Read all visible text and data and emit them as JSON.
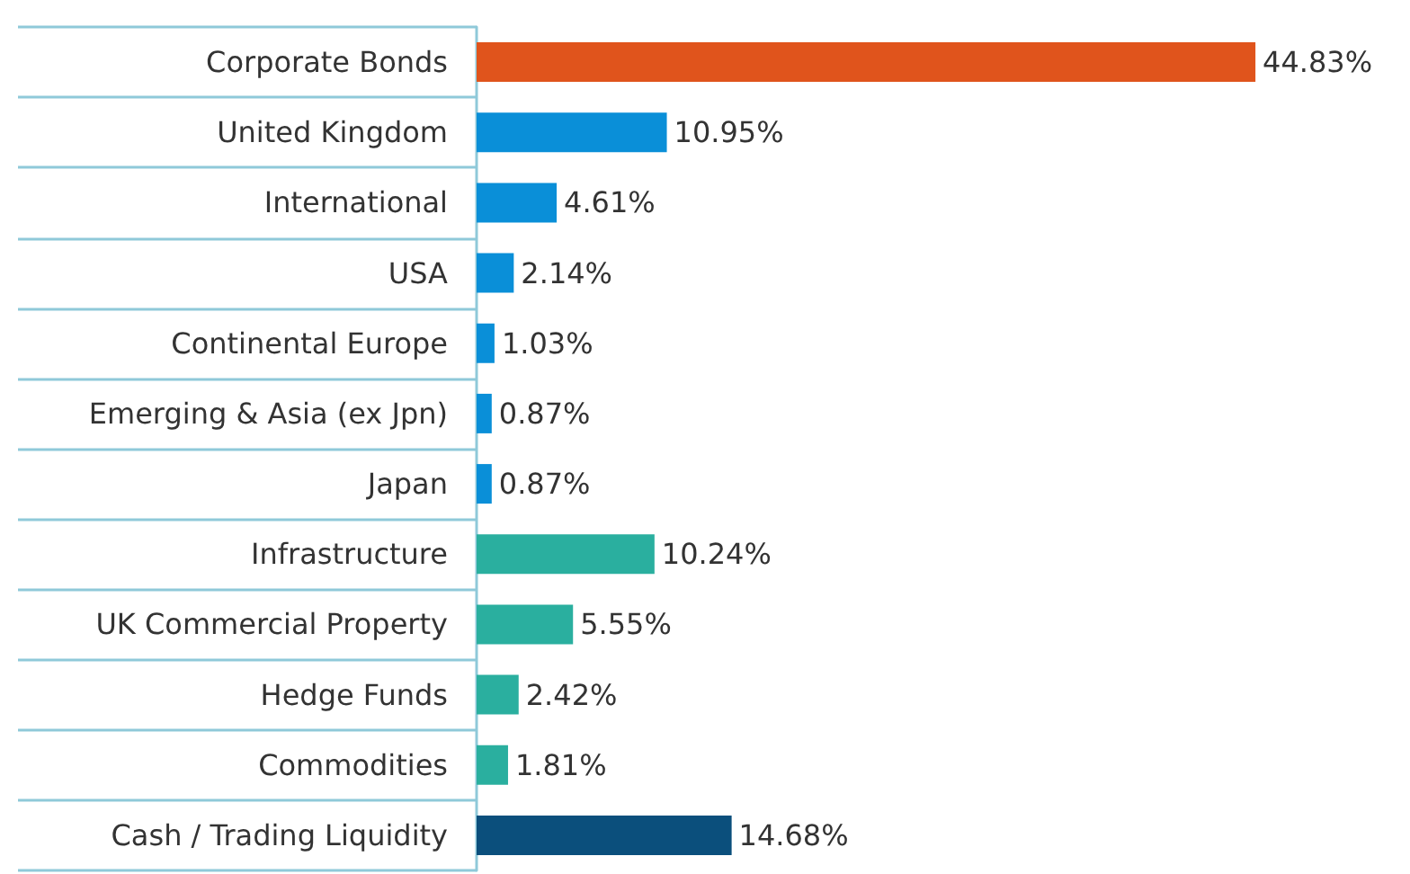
{
  "chart_data": {
    "type": "bar",
    "orientation": "horizontal",
    "categories": [
      "Corporate Bonds",
      "United Kingdom",
      "International",
      "USA",
      "Continental Europe",
      "Emerging & Asia (ex Jpn)",
      "Japan",
      "Infrastructure",
      "UK Commercial Property",
      "Hedge Funds",
      "Commodities",
      "Cash / Trading Liquidity"
    ],
    "values": [
      44.83,
      10.95,
      4.61,
      2.14,
      1.03,
      0.87,
      0.87,
      10.24,
      5.55,
      2.42,
      1.81,
      14.68
    ],
    "value_labels": [
      "44.83%",
      "10.95%",
      "4.61%",
      "2.14%",
      "1.03%",
      "0.87%",
      "0.87%",
      "10.24%",
      "5.55%",
      "2.42%",
      "1.81%",
      "14.68%"
    ],
    "colors": [
      "#e0541c",
      "#0a8fd8",
      "#0a8fd8",
      "#0a8fd8",
      "#0a8fd8",
      "#0a8fd8",
      "#0a8fd8",
      "#2aaf9f",
      "#2aaf9f",
      "#2aaf9f",
      "#2aaf9f",
      "#0b4f7c"
    ],
    "tick_labels": "y"
  }
}
